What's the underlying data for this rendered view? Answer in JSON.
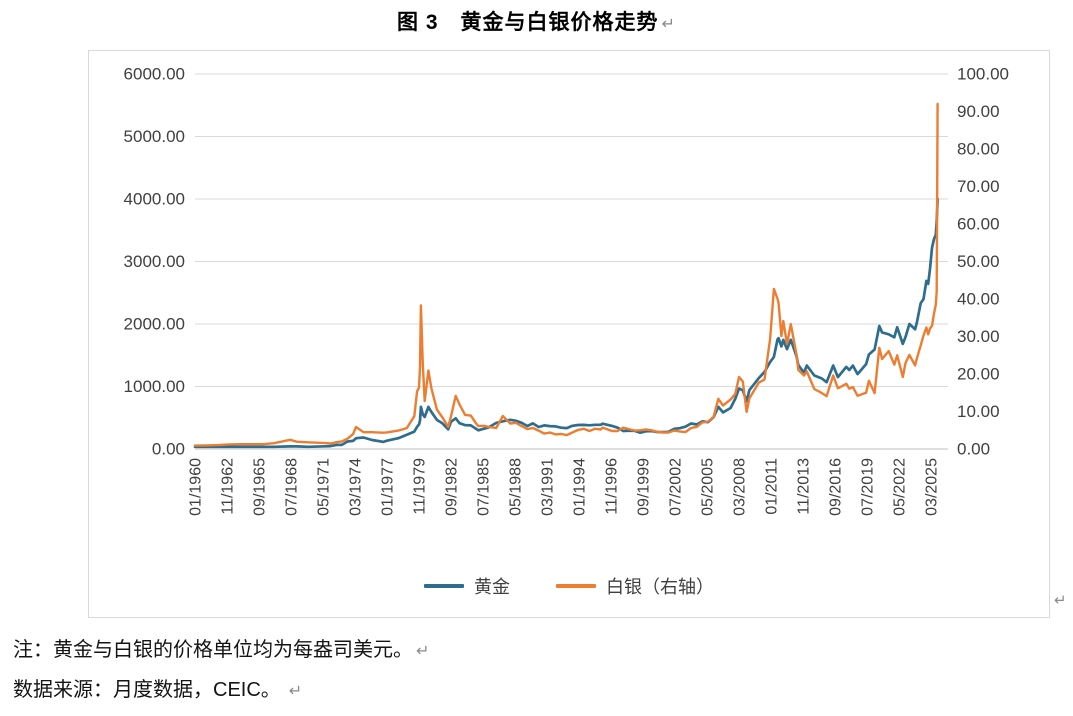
{
  "title": "图 3　黄金与白银价格走势",
  "pmark": "↵",
  "notes": [
    "注：黄金与白银的价格单位均为每盎司美元。",
    "数据来源：月度数据，CEIC。"
  ],
  "legend": [
    {
      "id": "gold",
      "label": "黄金",
      "color": "#2e6d8e"
    },
    {
      "id": "silver",
      "label": "白银（右轴）",
      "color": "#ed7d31"
    }
  ],
  "chart_data": {
    "type": "line",
    "title": "图 3　黄金与白银价格走势",
    "grid": true,
    "legend_position": "bottom",
    "left_axis": {
      "min": 0,
      "max": 6000,
      "step": 1000,
      "unit": "美元/盎司"
    },
    "right_axis": {
      "min": 0,
      "max": 100,
      "step": 10,
      "unit": "美元/盎司"
    },
    "left_ticks": [
      "6000.00",
      "5000.00",
      "4000.00",
      "3000.00",
      "2000.00",
      "1000.00",
      "0.00"
    ],
    "right_ticks": [
      "100.00",
      "90.00",
      "80.00",
      "70.00",
      "60.00",
      "50.00",
      "40.00",
      "30.00",
      "20.00",
      "10.00",
      "0.00"
    ],
    "x_tick_labels": [
      "01/1960",
      "11/1962",
      "09/1965",
      "07/1968",
      "05/1971",
      "03/1974",
      "01/1977",
      "11/1979",
      "09/1982",
      "07/1985",
      "05/1988",
      "03/1991",
      "01/1994",
      "11/1996",
      "09/1999",
      "07/2002",
      "05/2005",
      "03/2008",
      "01/2011",
      "11/2013",
      "09/2016",
      "07/2019",
      "05/2022",
      "03/2025"
    ],
    "x": [
      "01/1960",
      "01/1961",
      "01/1962",
      "01/1963",
      "01/1964",
      "01/1965",
      "01/1966",
      "01/1967",
      "06/1968",
      "01/1969",
      "01/1970",
      "08/1971",
      "01/1972",
      "08/1972",
      "01/1973",
      "07/1973",
      "01/1974",
      "04/1974",
      "12/1974",
      "09/1975",
      "09/1976",
      "01/1977",
      "01/1978",
      "10/1978",
      "06/1979",
      "09/1979",
      "11/1979",
      "12/1979",
      "01/1980",
      "03/1980",
      "05/1980",
      "09/1980",
      "12/1980",
      "06/1981",
      "12/1981",
      "06/1982",
      "09/1982",
      "02/1983",
      "06/1983",
      "12/1983",
      "06/1984",
      "12/1984",
      "02/1985",
      "08/1985",
      "01/1986",
      "09/1986",
      "04/1987",
      "12/1987",
      "06/1988",
      "12/1988",
      "06/1989",
      "12/1989",
      "06/1990",
      "12/1990",
      "06/1991",
      "12/1991",
      "06/1992",
      "12/1992",
      "06/1993",
      "12/1993",
      "06/1994",
      "12/1994",
      "06/1995",
      "12/1995",
      "02/1996",
      "12/1996",
      "06/1997",
      "12/1997",
      "06/1998",
      "12/1998",
      "06/1999",
      "12/1999",
      "06/2000",
      "12/2000",
      "06/2001",
      "12/2001",
      "06/2002",
      "12/2002",
      "06/2003",
      "12/2003",
      "06/2004",
      "12/2004",
      "06/2005",
      "12/2005",
      "05/2006",
      "10/2006",
      "06/2007",
      "11/2007",
      "03/2008",
      "07/2008",
      "11/2008",
      "02/2009",
      "12/2009",
      "06/2010",
      "12/2010",
      "04/2011",
      "08/2011",
      "09/2011",
      "12/2011",
      "02/2012",
      "06/2012",
      "10/2012",
      "04/2013",
      "06/2013",
      "12/2013",
      "03/2014",
      "11/2014",
      "07/2015",
      "12/2015",
      "07/2016",
      "12/2016",
      "09/2017",
      "12/2017",
      "04/2018",
      "09/2018",
      "06/2019",
      "09/2019",
      "03/2020",
      "08/2020",
      "11/2020",
      "06/2021",
      "12/2021",
      "03/2022",
      "09/2022",
      "12/2022",
      "04/2023",
      "10/2023",
      "12/2023",
      "04/2024",
      "07/2024",
      "10/2024",
      "12/2024",
      "02/2025",
      "04/2025",
      "06/2025",
      "08/2025",
      "09/2025",
      "10/2025"
    ],
    "series": [
      {
        "id": "gold",
        "name": "黄金",
        "axis": "left",
        "color": "#2e6d8e",
        "values": [
          35.3,
          35.3,
          35.2,
          35.1,
          35.1,
          35.1,
          35.1,
          35.2,
          41.1,
          42.3,
          35.0,
          42.7,
          45.8,
          67.0,
          65.1,
          120.2,
          129.2,
          172.2,
          183.9,
          144.1,
          114.2,
          132.3,
          173.2,
          227.4,
          279.1,
          355.1,
          392.0,
          455.1,
          675.3,
          553.6,
          513.8,
          673.6,
          594.9,
          464.8,
          410.1,
          315.0,
          435.8,
          491.0,
          412.8,
          382.4,
          377.7,
          320.1,
          299.0,
          325.3,
          345.4,
          417.7,
          443.0,
          466.8,
          451.3,
          418.5,
          367.6,
          409.2,
          352.3,
          378.2,
          366.7,
          361.1,
          340.8,
          334.8,
          371.9,
          383.3,
          385.6,
          379.3,
          387.6,
          387.4,
          404.8,
          369.0,
          340.8,
          288.7,
          292.3,
          291.6,
          261.3,
          283.7,
          285.7,
          271.5,
          270.2,
          275.9,
          321.2,
          332.4,
          356.4,
          407.6,
          392.4,
          442.1,
          430.7,
          510.1,
          675.4,
          585.8,
          655.5,
          806.3,
          968.4,
          939.8,
          760.9,
          943.2,
          1134.7,
          1232.9,
          1390.6,
          1473.8,
          1757.3,
          1772.1,
          1642.0,
          1744.8,
          1598.8,
          1747.0,
          1485.1,
          1343.3,
          1221.5,
          1336.1,
          1175.3,
          1128.3,
          1068.3,
          1336.7,
          1151.0,
          1314.1,
          1264.5,
          1334.8,
          1198.4,
          1359.0,
          1511.3,
          1591.8,
          1968.6,
          1866.3,
          1834.6,
          1787.6,
          1947.8,
          1681.1,
          1797.3,
          2000.2,
          1914.6,
          2026.2,
          2334.0,
          2398.0,
          2690.0,
          2644.0,
          2897.0,
          3218.0,
          3353.0,
          3430.0,
          3640.0,
          4000.0
        ]
      },
      {
        "id": "silver",
        "name": "白银（右轴）",
        "axis": "right",
        "color": "#ed7d31",
        "values": [
          0.91,
          0.95,
          1.05,
          1.22,
          1.29,
          1.29,
          1.29,
          1.55,
          2.45,
          1.95,
          1.8,
          1.57,
          1.47,
          1.85,
          2.03,
          2.75,
          3.97,
          5.87,
          4.47,
          4.47,
          4.35,
          4.42,
          4.9,
          5.56,
          8.75,
          15.4,
          16.4,
          21.8,
          38.3,
          22.6,
          12.8,
          20.9,
          16.3,
          10.5,
          8.4,
          5.9,
          8.7,
          14.2,
          11.9,
          9.1,
          8.9,
          6.7,
          6.1,
          6.2,
          5.9,
          5.6,
          8.8,
          6.8,
          7.0,
          6.1,
          5.3,
          5.6,
          4.9,
          4.1,
          4.4,
          3.9,
          4.0,
          3.7,
          4.4,
          5.1,
          5.4,
          4.8,
          5.4,
          5.2,
          5.7,
          4.8,
          4.8,
          5.7,
          5.3,
          4.9,
          5.0,
          5.2,
          5.0,
          4.6,
          4.4,
          4.4,
          4.9,
          4.7,
          4.5,
          5.6,
          5.9,
          7.1,
          7.3,
          8.6,
          13.4,
          11.6,
          13.2,
          14.7,
          19.2,
          18.0,
          9.9,
          13.5,
          17.7,
          18.5,
          29.3,
          42.7,
          40.0,
          38.8,
          30.1,
          34.1,
          28.0,
          33.3,
          25.2,
          21.1,
          19.6,
          20.7,
          16.0,
          14.9,
          14.1,
          19.6,
          16.2,
          17.4,
          16.1,
          16.5,
          14.2,
          15.0,
          18.2,
          14.9,
          27.0,
          24.0,
          26.1,
          22.5,
          25.0,
          19.2,
          23.0,
          25.1,
          22.3,
          24.2,
          27.6,
          30.3,
          32.4,
          30.6,
          32.2,
          32.8,
          36.0,
          38.5,
          42.0,
          92.0
        ]
      }
    ]
  }
}
